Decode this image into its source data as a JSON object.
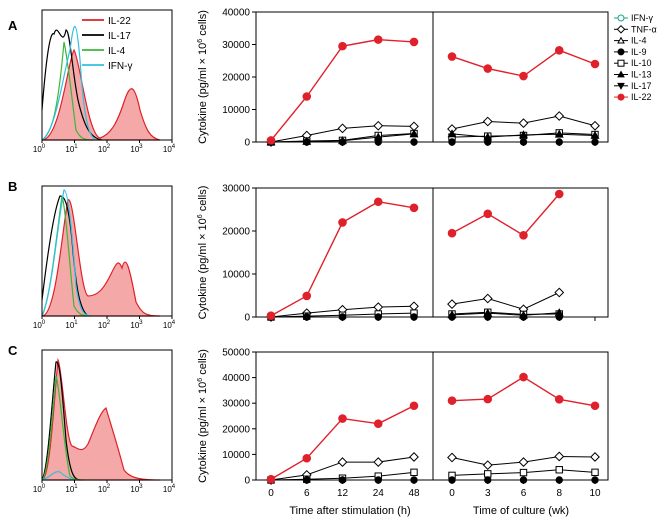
{
  "figure": {
    "panel_labels": [
      "A",
      "B",
      "C"
    ],
    "histogram_axis": {
      "tick_base": "10",
      "tick_exponents": [
        "0",
        "1",
        "2",
        "3",
        "4"
      ]
    },
    "legend_histogram": [
      {
        "label": "IL-22",
        "color": "#e0202a"
      },
      {
        "label": "IL-17",
        "color": "#000000"
      },
      {
        "label": "IL-4",
        "color": "#38b838"
      },
      {
        "label": "IFN-γ",
        "color": "#30c0e0"
      }
    ],
    "legend_cytokine": [
      {
        "label": "IFN-γ",
        "marker": "open-circle"
      },
      {
        "label": "TNF-α",
        "marker": "open-diamond"
      },
      {
        "label": "IL-4",
        "marker": "open-triangle"
      },
      {
        "label": "IL-9",
        "marker": "filled-circle-black"
      },
      {
        "label": "IL-10",
        "marker": "open-square"
      },
      {
        "label": "IL-13",
        "marker": "filled-triangle"
      },
      {
        "label": "IL-17",
        "marker": "filled-triangle-down"
      },
      {
        "label": "IL-22",
        "marker": "filled-circle-red"
      }
    ],
    "ylabel_prefix": "Cytokine (pg/ml × 10",
    "ylabel_exponent": "6",
    "ylabel_suffix": " cells)",
    "xlabel_left": "Time after stimulation (h)",
    "xlabel_right": "Time of culture (wk)"
  },
  "chart_data": [
    {
      "type": "line",
      "panel": "A",
      "ylim": [
        0,
        40000
      ],
      "yticks": [
        0,
        10000,
        20000,
        30000,
        40000
      ],
      "left": {
        "x_categories": [
          "0",
          "6",
          "12",
          "24",
          "48"
        ],
        "series": [
          {
            "name": "IL-22",
            "values": [
              500,
              14000,
              29500,
              31500,
              30800
            ]
          },
          {
            "name": "TNF-α",
            "values": [
              0,
              2000,
              4200,
              5000,
              4800
            ]
          },
          {
            "name": "IL-10",
            "values": [
              0,
              300,
              500,
              2000,
              2600
            ]
          },
          {
            "name": "IL-13",
            "values": [
              0,
              200,
              400,
              1500,
              2500
            ]
          },
          {
            "name": "IL-9",
            "values": [
              0,
              0,
              0,
              0,
              0
            ]
          }
        ]
      },
      "right": {
        "x_categories": [
          "0",
          "3",
          "6",
          "8",
          "10"
        ],
        "series": [
          {
            "name": "IL-22",
            "values": [
              26300,
              22600,
              20300,
              28200,
              24000
            ]
          },
          {
            "name": "TNF-α",
            "values": [
              4000,
              6300,
              5800,
              8000,
              5000
            ]
          },
          {
            "name": "IL-10",
            "values": [
              1500,
              1800,
              2000,
              2800,
              2300
            ]
          },
          {
            "name": "IL-13",
            "values": [
              2500,
              1500,
              2200,
              2400,
              2000
            ]
          },
          {
            "name": "IL-9",
            "values": [
              0,
              0,
              0,
              0,
              0
            ]
          }
        ]
      }
    },
    {
      "type": "line",
      "panel": "B",
      "ylim": [
        0,
        30000
      ],
      "yticks": [
        0,
        10000,
        20000,
        30000
      ],
      "left": {
        "x_categories": [
          "0",
          "6",
          "12",
          "24",
          "48"
        ],
        "series": [
          {
            "name": "IL-22",
            "values": [
              300,
              4900,
              22000,
              26800,
              25400
            ]
          },
          {
            "name": "TNF-α",
            "values": [
              0,
              900,
              1700,
              2300,
              2500
            ]
          },
          {
            "name": "IL-10",
            "values": [
              0,
              200,
              400,
              700,
              900
            ]
          },
          {
            "name": "IL-9",
            "values": [
              0,
              0,
              0,
              0,
              0
            ]
          }
        ]
      },
      "right": {
        "x_categories": [
          "0",
          "3",
          "6",
          "8",
          "10"
        ],
        "series": [
          {
            "name": "IL-22",
            "values": [
              19500,
              24000,
              19000,
              28600
            ]
          },
          {
            "name": "TNF-α",
            "values": [
              3000,
              4300,
              1800,
              5700
            ]
          },
          {
            "name": "IL-10",
            "values": [
              700,
              1100,
              600,
              700
            ]
          },
          {
            "name": "IL-13",
            "values": [
              500,
              900,
              400,
              1000
            ]
          },
          {
            "name": "IL-9",
            "values": [
              0,
              0,
              0,
              0
            ]
          }
        ]
      }
    },
    {
      "type": "line",
      "panel": "C",
      "ylim": [
        0,
        50000
      ],
      "yticks": [
        0,
        10000,
        20000,
        30000,
        40000,
        50000
      ],
      "left": {
        "x_categories": [
          "0",
          "6",
          "12",
          "24",
          "48"
        ],
        "series": [
          {
            "name": "IL-22",
            "values": [
              300,
              8500,
              24000,
              22000,
              29000
            ]
          },
          {
            "name": "TNF-α",
            "values": [
              0,
              2000,
              7000,
              7000,
              9000
            ]
          },
          {
            "name": "IL-10",
            "values": [
              0,
              300,
              700,
              1500,
              3000
            ]
          },
          {
            "name": "IL-9",
            "values": [
              0,
              0,
              0,
              0,
              0
            ]
          }
        ]
      },
      "right": {
        "x_categories": [
          "0",
          "3",
          "6",
          "8",
          "10"
        ],
        "series": [
          {
            "name": "IL-22",
            "values": [
              31000,
              31600,
              40200,
              31500,
              29000
            ]
          },
          {
            "name": "TNF-α",
            "values": [
              8800,
              5800,
              7000,
              9200,
              9000
            ]
          },
          {
            "name": "IL-10",
            "values": [
              1800,
              2400,
              2900,
              4000,
              3000
            ]
          },
          {
            "name": "IL-9",
            "values": [
              0,
              0,
              0,
              0,
              0
            ]
          }
        ]
      }
    }
  ]
}
